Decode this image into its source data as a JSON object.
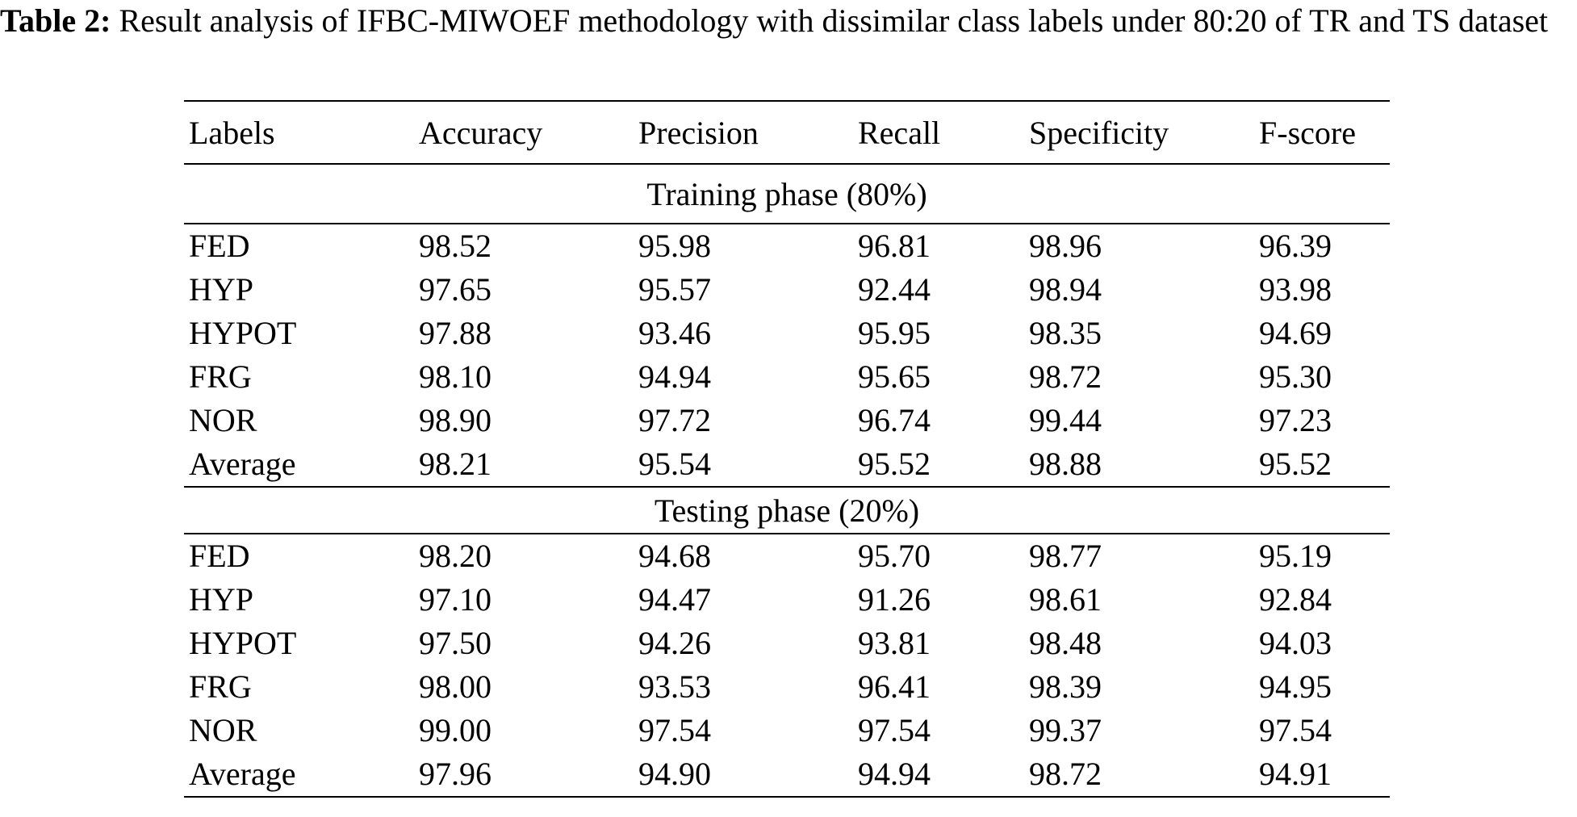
{
  "caption": {
    "label": "Table 2:",
    "text": " Result analysis of IFBC-MIWOEF methodology with dissimilar class labels under 80:20 of TR and TS dataset"
  },
  "table": {
    "headers": [
      "Labels",
      "Accuracy",
      "Precision",
      "Recall",
      "Specificity",
      "F-score"
    ],
    "sections": [
      {
        "title": "Training phase (80%)",
        "rows": [
          [
            "FED",
            "98.52",
            "95.98",
            "96.81",
            "98.96",
            "96.39"
          ],
          [
            "HYP",
            "97.65",
            "95.57",
            "92.44",
            "98.94",
            "93.98"
          ],
          [
            "HYPOT",
            "97.88",
            "93.46",
            "95.95",
            "98.35",
            "94.69"
          ],
          [
            "FRG",
            "98.10",
            "94.94",
            "95.65",
            "98.72",
            "95.30"
          ],
          [
            "NOR",
            "98.90",
            "97.72",
            "96.74",
            "99.44",
            "97.23"
          ],
          [
            "Average",
            "98.21",
            "95.54",
            "95.52",
            "98.88",
            "95.52"
          ]
        ]
      },
      {
        "title": "Testing phase (20%)",
        "rows": [
          [
            "FED",
            "98.20",
            "94.68",
            "95.70",
            "98.77",
            "95.19"
          ],
          [
            "HYP",
            "97.10",
            "94.47",
            "91.26",
            "98.61",
            "92.84"
          ],
          [
            "HYPOT",
            "97.50",
            "94.26",
            "93.81",
            "98.48",
            "94.03"
          ],
          [
            "FRG",
            "98.00",
            "93.53",
            "96.41",
            "98.39",
            "94.95"
          ],
          [
            "NOR",
            "99.00",
            "97.54",
            "97.54",
            "99.37",
            "97.54"
          ],
          [
            "Average",
            "97.96",
            "94.90",
            "94.94",
            "98.72",
            "94.91"
          ]
        ]
      }
    ]
  }
}
